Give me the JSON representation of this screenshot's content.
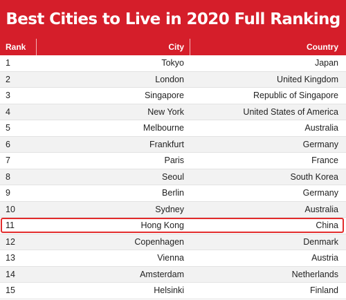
{
  "title": "Best Cities to Live in 2020 Full Ranking",
  "colors": {
    "header_red": "#d51e2a",
    "highlight_border": "#e22b2b",
    "row_alt": "#f2f2f2"
  },
  "columns": {
    "rank": "Rank",
    "city": "City",
    "country": "Country"
  },
  "highlighted_rank": "11",
  "rows": [
    {
      "rank": "1",
      "city": "Tokyo",
      "country": "Japan"
    },
    {
      "rank": "2",
      "city": "London",
      "country": "United Kingdom"
    },
    {
      "rank": "3",
      "city": "Singapore",
      "country": "Republic of Singapore"
    },
    {
      "rank": "4",
      "city": "New York",
      "country": "United States of America"
    },
    {
      "rank": "5",
      "city": "Melbourne",
      "country": "Australia"
    },
    {
      "rank": "6",
      "city": "Frankfurt",
      "country": "Germany"
    },
    {
      "rank": "7",
      "city": "Paris",
      "country": "France"
    },
    {
      "rank": "8",
      "city": "Seoul",
      "country": "South Korea"
    },
    {
      "rank": "9",
      "city": "Berlin",
      "country": "Germany"
    },
    {
      "rank": "10",
      "city": "Sydney",
      "country": "Australia"
    },
    {
      "rank": "11",
      "city": "Hong Kong",
      "country": "China"
    },
    {
      "rank": "12",
      "city": "Copenhagen",
      "country": "Denmark"
    },
    {
      "rank": "13",
      "city": "Vienna",
      "country": "Austria"
    },
    {
      "rank": "14",
      "city": "Amsterdam",
      "country": "Netherlands"
    },
    {
      "rank": "15",
      "city": "Helsinki",
      "country": "Finland"
    }
  ]
}
